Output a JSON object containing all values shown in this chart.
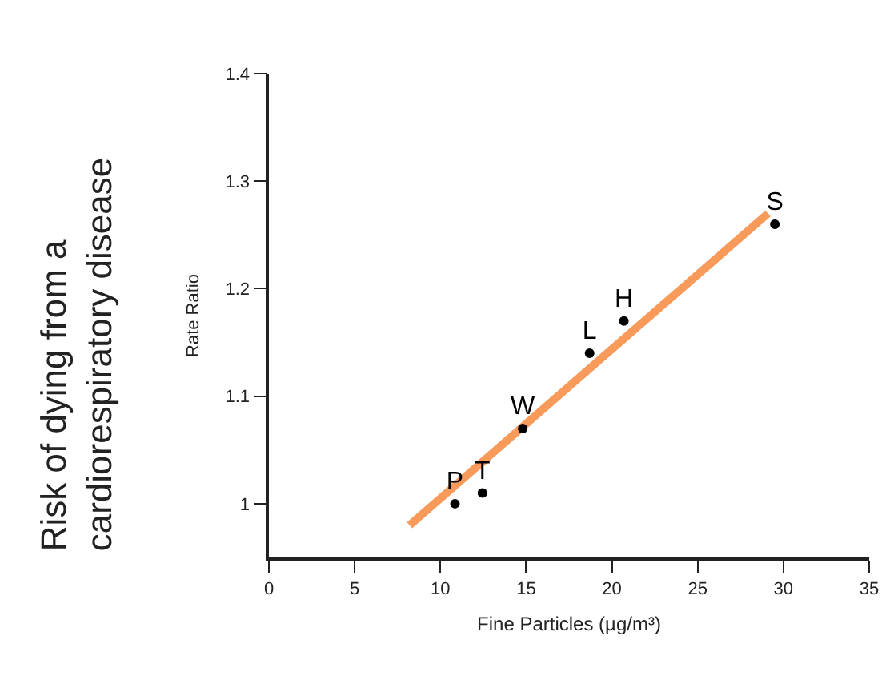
{
  "chart_data": {
    "type": "scatter",
    "xlabel": "Fine Particles (µg/m³)",
    "ylabel": "Rate Ratio",
    "annotations": [
      "Risk of dying from a cardiorespiratory disease"
    ],
    "xlim": [
      0,
      35
    ],
    "xticks": [
      0,
      5,
      10,
      15,
      20,
      25,
      30,
      35
    ],
    "ylim": [
      0.95,
      1.4
    ],
    "yticks": [
      1.0,
      1.1,
      1.2,
      1.3,
      1.4
    ],
    "grid": false,
    "legend": false,
    "marker": "circle",
    "series": [
      {
        "name": "P",
        "color": "#000000",
        "x": [
          10.85
        ],
        "values": [
          1.0
        ]
      },
      {
        "name": "T",
        "color": "#000000",
        "x": [
          12.45
        ],
        "values": [
          1.01
        ]
      },
      {
        "name": "W",
        "color": "#000000",
        "x": [
          14.8
        ],
        "values": [
          1.07
        ]
      },
      {
        "name": "L",
        "color": "#000000",
        "x": [
          18.7
        ],
        "values": [
          1.14
        ]
      },
      {
        "name": "H",
        "color": "#000000",
        "x": [
          20.7
        ],
        "values": [
          1.17
        ]
      },
      {
        "name": "S",
        "color": "#000000",
        "x": [
          29.5
        ],
        "values": [
          1.26
        ]
      },
      {
        "type": "line",
        "color": "#f79a5a",
        "x": [
          8.2,
          29.1
        ],
        "values": [
          0.98,
          1.27
        ],
        "line_style": "solid",
        "marker": "none"
      }
    ]
  }
}
